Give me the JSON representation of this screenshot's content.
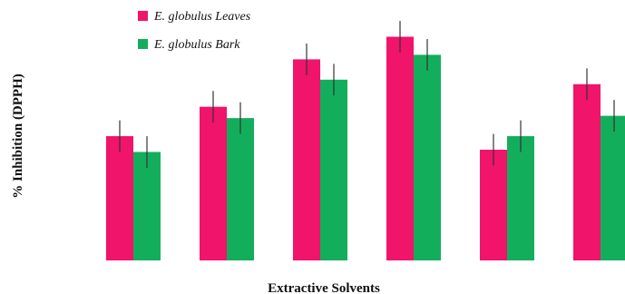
{
  "chart_data": {
    "type": "bar",
    "title": "",
    "xlabel": "Extractive Solvents",
    "ylabel": "% Inhibition (DPPH)",
    "categories": [
      "",
      "",
      "",
      "",
      "",
      ""
    ],
    "ylim": [
      0,
      100
    ],
    "grid": false,
    "legend_position": "top-left",
    "series": [
      {
        "name": "E. globulus Leaves",
        "color": "#F0146A",
        "values": [
          55,
          68,
          89,
          99,
          49,
          78
        ],
        "errors": [
          7,
          7,
          7,
          7,
          7,
          7
        ]
      },
      {
        "name": "E. globulus Bark",
        "color": "#13AE5C",
        "values": [
          48,
          63,
          80,
          91,
          55,
          64
        ],
        "errors": [
          7,
          7,
          7,
          7,
          7,
          7
        ]
      }
    ]
  }
}
